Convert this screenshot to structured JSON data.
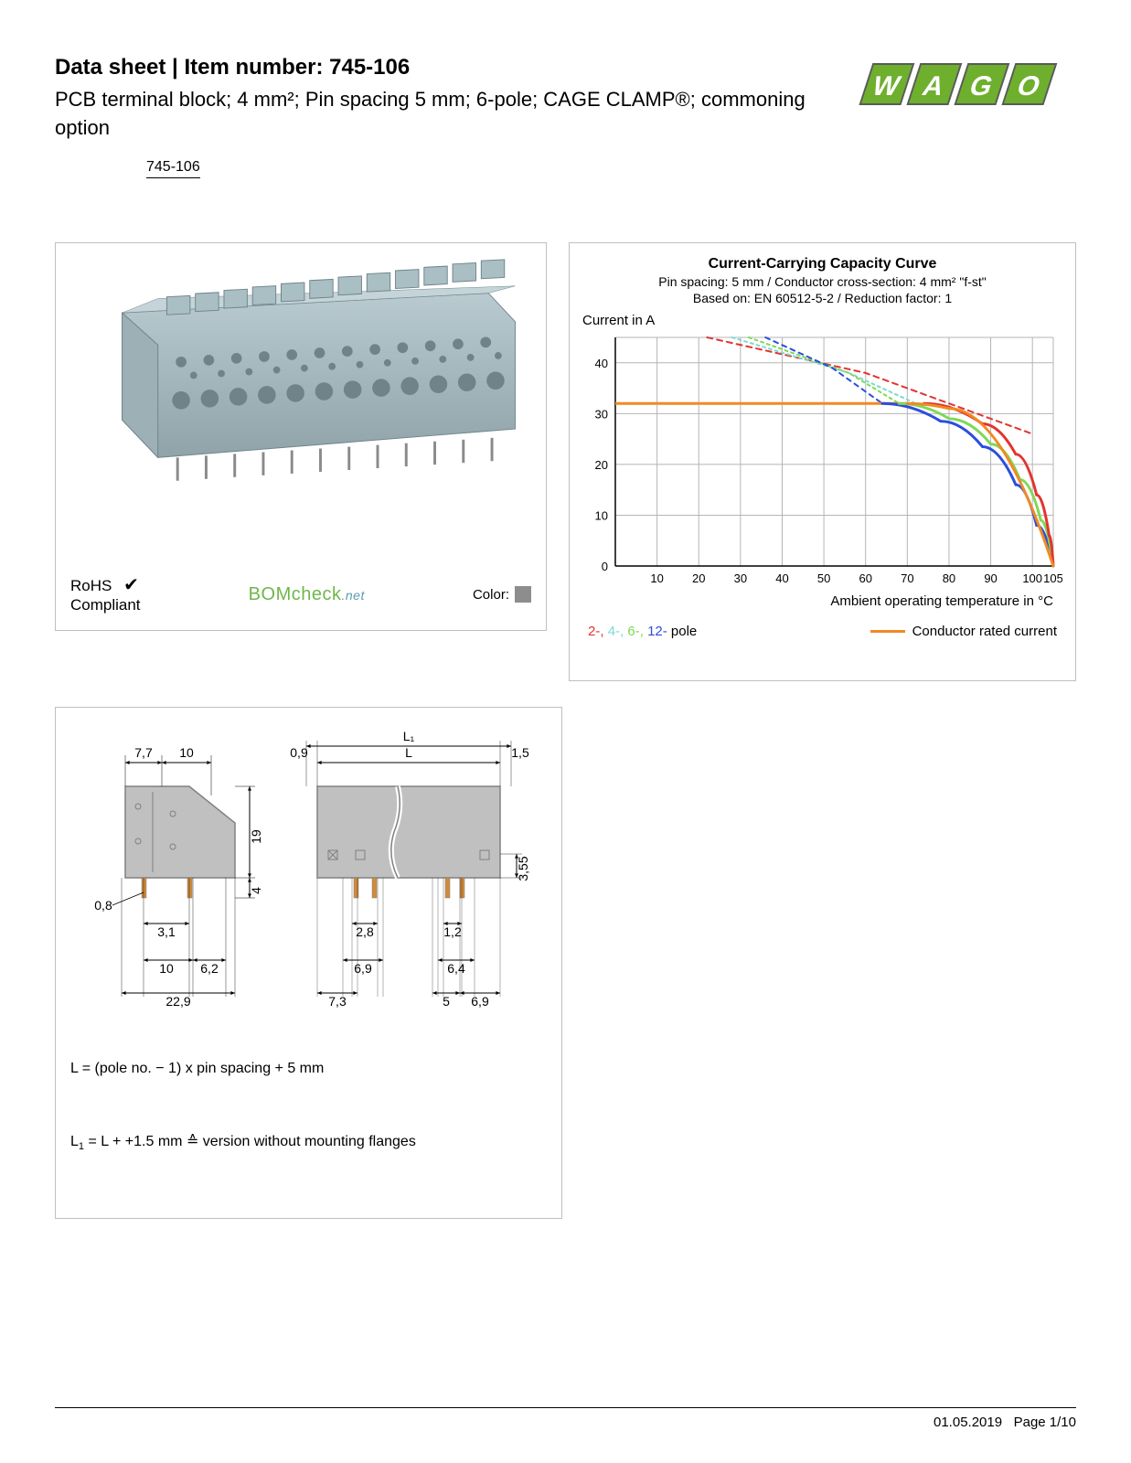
{
  "header": {
    "ds_label": "Data sheet",
    "separator": "  |  ",
    "item_label": "Item number: 745-106",
    "description": "PCB terminal block; 4 mm²; Pin spacing 5 mm; 6-pole; CAGE CLAMP®; commoning option",
    "badge": "745-106"
  },
  "logo": {
    "name": "WAGO",
    "square_fill": "#6eaf2e",
    "square_stroke": "#5a5a5a"
  },
  "product_panel": {
    "block_color": "#a8bcc2",
    "block_shadow": "#7f9298",
    "pin_color": "#8a8a8a",
    "rohs_line1": "RoHS",
    "rohs_line2": "Compliant",
    "check": "✔",
    "bomcheck_main": "BOMcheck",
    "bomcheck_net": ".net",
    "color_label": "Color:",
    "color_swatch": "#8d8d8d"
  },
  "chart": {
    "title": "Current-Carrying Capacity Curve",
    "subtitle1": "Pin spacing: 5 mm / Conductor cross-section: 4 mm² \"f-st\"",
    "subtitle2": "Based on: EN 60512-5-2 / Reduction factor: 1",
    "y_axis_label": "Current in A",
    "x_axis_label": "Ambient operating temperature in °C",
    "x_ticks": [
      10,
      20,
      30,
      40,
      50,
      60,
      70,
      80,
      90,
      100,
      105
    ],
    "y_ticks": [
      0,
      10,
      20,
      30,
      40
    ],
    "xlim": [
      0,
      105
    ],
    "ylim": [
      0,
      45
    ],
    "grid_color": "#b5b5b5",
    "axis_color": "#000000",
    "background": "#ffffff",
    "series": {
      "rated": {
        "color": "#f08a24",
        "width": 3,
        "points": [
          [
            0,
            32
          ],
          [
            70,
            32
          ],
          [
            74,
            31.8
          ],
          [
            80,
            31
          ],
          [
            105,
            0
          ]
        ]
      },
      "pole2_red_dashed": {
        "color": "#e3342f",
        "width": 2,
        "dash": "6 5",
        "points": [
          [
            22,
            45
          ],
          [
            60,
            38
          ],
          [
            100,
            26
          ]
        ]
      },
      "pole4_cyan_dashed": {
        "color": "#7ddad0",
        "width": 2,
        "dash": "3 4",
        "points": [
          [
            28,
            45
          ],
          [
            56,
            38
          ],
          [
            72,
            32
          ]
        ]
      },
      "pole6_green_dashed": {
        "color": "#7ed957",
        "width": 2,
        "dash": "3 4",
        "points": [
          [
            32,
            45
          ],
          [
            56,
            38
          ],
          [
            68,
            32
          ]
        ]
      },
      "pole12_blue_dashed": {
        "color": "#2b4de0",
        "width": 2,
        "dash": "5 5",
        "points": [
          [
            36,
            45
          ],
          [
            52,
            39
          ],
          [
            64,
            32
          ]
        ]
      },
      "pole2_red": {
        "color": "#e3342f",
        "width": 3,
        "points": [
          [
            74,
            32
          ],
          [
            88,
            28
          ],
          [
            96,
            22
          ],
          [
            101,
            14
          ],
          [
            104,
            6
          ],
          [
            105,
            0
          ]
        ]
      },
      "pole6_green": {
        "color": "#7ed957",
        "width": 3,
        "points": [
          [
            68,
            32
          ],
          [
            80,
            29
          ],
          [
            90,
            24
          ],
          [
            97,
            17
          ],
          [
            102,
            9
          ],
          [
            105,
            0
          ]
        ]
      },
      "pole12_blue": {
        "color": "#2b4de0",
        "width": 3,
        "points": [
          [
            64,
            32
          ],
          [
            78,
            28.5
          ],
          [
            88,
            23.5
          ],
          [
            96,
            16
          ],
          [
            101,
            8
          ],
          [
            105,
            0
          ]
        ]
      }
    },
    "legend": {
      "poles": [
        {
          "label": "2-",
          "color": "#e3342f"
        },
        {
          "label": "4-",
          "color": "#7ddad0"
        },
        {
          "label": "6-",
          "color": "#7ed957"
        },
        {
          "label": "12-",
          "color": "#2b4de0"
        }
      ],
      "poles_suffix": " pole",
      "rated_label": "Conductor rated current",
      "rated_color": "#f08a24"
    }
  },
  "dim_panel": {
    "outline_color": "#808080",
    "fill_color": "#c0c0c0",
    "pin_color": "#d18a3a",
    "dims_left": {
      "t1": "7,7",
      "t2": "10",
      "h": "19",
      "pinh": "4",
      "pw": "0,8",
      "ps": "3,1",
      "b1": "10",
      "b2": "6,2",
      "bw": "22,9"
    },
    "dims_right": {
      "lt": "0,9",
      "L1": "L₁",
      "L": "L",
      "r": "1,5",
      "side": "3,55",
      "p1": "2,8",
      "p2": "1,2",
      "b1": "6,9",
      "b2": "6,4",
      "c1": "7,3",
      "c2": "5",
      "c3": "6,9"
    },
    "formula1": "L  = (pole no. − 1) x pin spacing + 5 mm",
    "formula2_pre": "L",
    "formula2_sub": "1",
    "formula2_post": " = L + +1.5 mm ≙ version without mounting flanges"
  },
  "footer": {
    "date": "01.05.2019",
    "page": "Page 1/10"
  }
}
